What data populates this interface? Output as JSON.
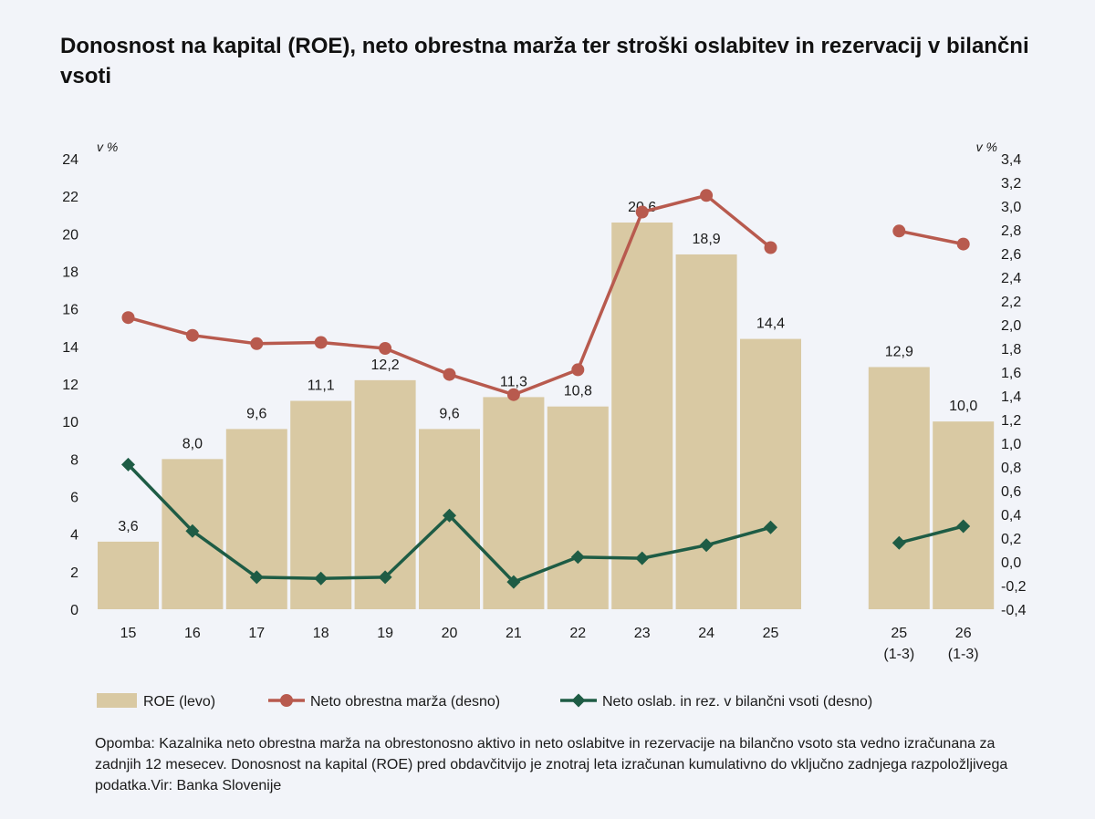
{
  "title": "Donosnost na kapital (ROE), neto obrestna marža ter stroški oslabitev in rezervacij v bilančni vsoti",
  "note": "Opomba: Kazalnika neto obrestna marža na obrestonosno aktivo in neto oslabitve in rezervacije na bilančno vsoto sta vedno izračunana za zadnjih 12 mesecev. Donosnost na kapital (ROE) pred obdavčitvijo je znotraj leta izračunan kumulativno do vključno zadnjega razpoložljivega podatka.Vir: Banka Slovenije",
  "colors": {
    "bar": "#d9c9a3",
    "nim": "#b85a4e",
    "prov": "#1e5c45",
    "text": "#1a1a1a"
  },
  "chart_data": {
    "type": "bar+line",
    "categories": [
      "15",
      "16",
      "17",
      "18",
      "19",
      "20",
      "21",
      "22",
      "23",
      "24",
      "25",
      "",
      "25\n(1-3)",
      "26\n(1-3)"
    ],
    "left_axis": {
      "label": "v %",
      "min": 0,
      "max": 24,
      "step": 2,
      "ticks": [
        "0",
        "2",
        "4",
        "6",
        "8",
        "10",
        "12",
        "14",
        "16",
        "18",
        "20",
        "22",
        "24"
      ]
    },
    "right_axis": {
      "label": "v %",
      "min": -0.4,
      "max": 3.4,
      "step": 0.2,
      "ticks": [
        "-0,4",
        "-0,2",
        "0,0",
        "0,2",
        "0,4",
        "0,6",
        "0,8",
        "1,0",
        "1,2",
        "1,4",
        "1,6",
        "1,8",
        "2,0",
        "2,2",
        "2,4",
        "2,6",
        "2,8",
        "3,0",
        "3,2",
        "3,4"
      ]
    },
    "series": [
      {
        "name": "ROE (levo)",
        "type": "bar",
        "axis": "left",
        "values": [
          3.6,
          8.0,
          9.6,
          11.1,
          12.2,
          9.6,
          11.3,
          10.8,
          20.6,
          18.9,
          14.4,
          null,
          12.9,
          10.0
        ],
        "labels": [
          "3,6",
          "8,0",
          "9,6",
          "11,1",
          "12,2",
          "9,6",
          "11,3",
          "10,8",
          "20,6",
          "18,9",
          "14,4",
          "",
          "12,9",
          "10,0"
        ]
      },
      {
        "name": "Neto obrestna marža (desno)",
        "type": "line",
        "marker": "circle",
        "axis": "right",
        "values": [
          2.06,
          1.91,
          1.84,
          1.85,
          1.8,
          1.58,
          1.41,
          1.62,
          2.95,
          3.09,
          2.65,
          null,
          2.79,
          2.68
        ]
      },
      {
        "name": "Neto oslab. in rez. v bilančni vsoti (desno)",
        "type": "line",
        "marker": "diamond",
        "axis": "right",
        "values": [
          0.82,
          0.26,
          -0.13,
          -0.14,
          -0.13,
          0.39,
          -0.17,
          0.04,
          0.03,
          0.14,
          0.29,
          null,
          0.16,
          0.3
        ]
      }
    ],
    "legend_position": "bottom",
    "grid": false
  }
}
